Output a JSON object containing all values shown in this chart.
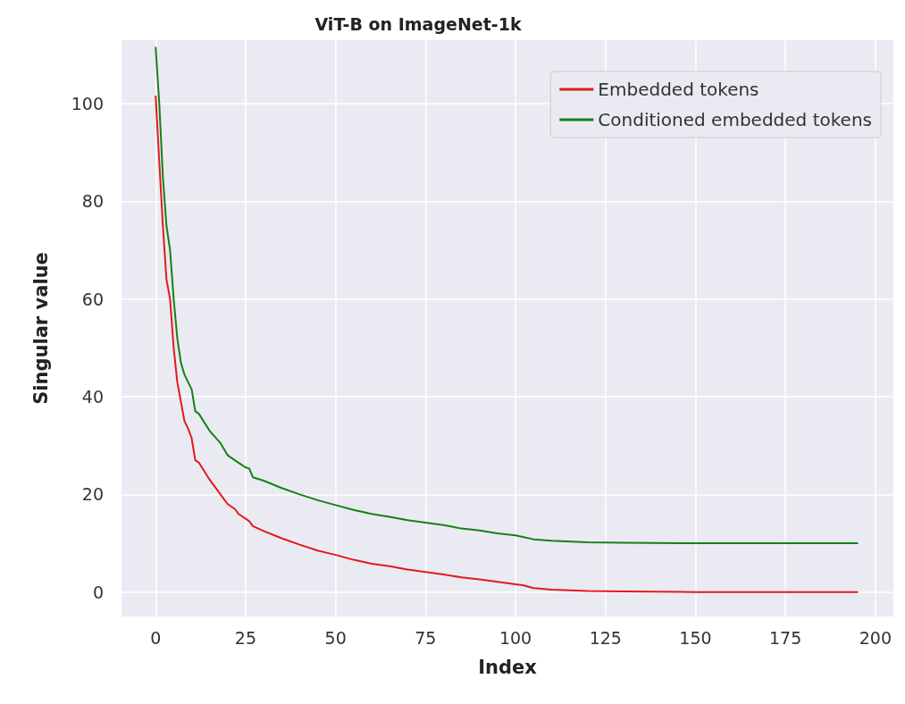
{
  "chart_data": {
    "type": "line",
    "title": "ViT-B on ImageNet-1k",
    "xlabel": "Index",
    "ylabel": "Singular value",
    "x": [
      0,
      1,
      2,
      3,
      4,
      5,
      6,
      7,
      8,
      9,
      10,
      11,
      12,
      15,
      18,
      20,
      22,
      23,
      25,
      26,
      27,
      30,
      35,
      40,
      45,
      50,
      55,
      60,
      65,
      70,
      75,
      80,
      85,
      90,
      95,
      100,
      102,
      105,
      110,
      120,
      130,
      150,
      195
    ],
    "series": [
      {
        "name": "Embedded tokens",
        "color": "#e31a1c",
        "values": [
          101.5,
          88,
          75,
          64,
          60,
          50,
          43,
          39,
          35,
          33.5,
          31.5,
          27,
          26.5,
          23,
          20,
          18,
          17,
          16,
          15,
          14.5,
          13.5,
          12.5,
          11,
          9.7,
          8.5,
          7.6,
          6.6,
          5.8,
          5.3,
          4.6,
          4.1,
          3.6,
          3,
          2.6,
          2.1,
          1.6,
          1.4,
          0.8,
          0.5,
          0.2,
          0.1,
          0,
          0
        ]
      },
      {
        "name": "Conditioned embedded tokens",
        "color": "#168016",
        "values": [
          111.5,
          100,
          85,
          75,
          70,
          60,
          52,
          47,
          44.5,
          43,
          41.5,
          37,
          36.5,
          33,
          30.5,
          28,
          27,
          26.5,
          25.5,
          25.3,
          23.5,
          22.8,
          21.3,
          20,
          18.8,
          17.8,
          16.8,
          16,
          15.4,
          14.7,
          14.2,
          13.7,
          13,
          12.6,
          12,
          11.6,
          11.3,
          10.8,
          10.5,
          10.2,
          10.1,
          10,
          10
        ]
      }
    ],
    "xlim": [
      -9.5,
      205
    ],
    "ylim": [
      -5,
      113
    ],
    "xticks": [
      0,
      25,
      50,
      75,
      100,
      125,
      150,
      175,
      200
    ],
    "yticks": [
      0,
      20,
      40,
      60,
      80,
      100
    ],
    "grid": true,
    "legend": "top right",
    "marker": "none",
    "line_style": "solid"
  }
}
